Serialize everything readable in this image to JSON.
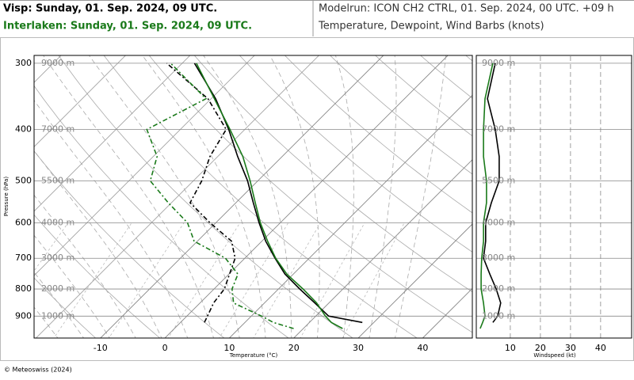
{
  "header": {
    "modelrun": "Modelrun: ICON CH2 CTRL, 01. Sep. 2024, 00 UTC. +09 h",
    "subtitle": "Temperature, Dewpoint, Wind Barbs (knots)"
  },
  "footer": "© Meteoswiss (2024)",
  "chart_data": [
    {
      "type": "skewt",
      "ylabel": "Pressure (hPa)",
      "xlabel": "Temperature (°C)",
      "xlim": [
        -20.3,
        47.7
      ],
      "xticks": [
        -10,
        0,
        10,
        20,
        30,
        40
      ],
      "ylim": [
        990,
        290
      ],
      "yticks": [
        300,
        400,
        500,
        600,
        700,
        800,
        900
      ],
      "log_y": true,
      "grid": true,
      "height_labels": [
        "9000 m",
        "7000 m",
        "5500 m",
        "4000 m",
        "3000 m",
        "2000 m",
        "1000 m"
      ],
      "series": [
        {
          "name": "Visp: Sunday, 01. Sep. 2024, 09 UTC.",
          "color": "#000000",
          "values": [
            925,
            900,
            850,
            800,
            750,
            700,
            650,
            600,
            550,
            500,
            450,
            400,
            350,
            300
          ],
          "x": [
            28.2,
            22.0,
            17.8,
            13.3,
            8.7,
            4.7,
            0.6,
            -3.3,
            -7.3,
            -11.6,
            -16.9,
            -22.5,
            -29.3,
            -38.1
          ],
          "dewpoint": [
            3.7,
            3.2,
            2.1,
            1.6,
            0.1,
            -1.5,
            -4.7,
            -10.9,
            -17.1,
            -18.7,
            -21.2,
            -22.9,
            -30.5,
            -42.4
          ]
        },
        {
          "name": "Interlaken: Sunday, 01. Sep. 2024, 09 UTC.",
          "color": "#1a7a1a",
          "values": [
            950,
            925,
            900,
            850,
            800,
            750,
            700,
            650,
            600,
            550,
            500,
            450,
            400,
            350,
            300
          ],
          "x": [
            26.1,
            23.4,
            21.5,
            18.1,
            13.8,
            9.0,
            4.8,
            0.9,
            -3.1,
            -7.0,
            -11.2,
            -16.1,
            -22.3,
            -29.5,
            -37.8
          ],
          "dewpoint": [
            18.5,
            14.4,
            11.6,
            5.2,
            2.8,
            1.4,
            -3.0,
            -10.5,
            -14.4,
            -20.5,
            -26.7,
            -29.4,
            -35.2,
            -30.8,
            -41.8
          ]
        }
      ]
    },
    {
      "type": "windprofile",
      "xlabel": "Windspeed (kt)",
      "xlim": [
        -1.3,
        50.3
      ],
      "xticks": [
        10,
        20,
        30,
        40
      ],
      "series": [
        {
          "color": "#000000",
          "values": [
            925,
            900,
            850,
            800,
            750,
            700,
            650,
            600,
            550,
            500,
            450,
            400,
            350,
            300
          ],
          "x": [
            4.2,
            5.8,
            6.8,
            5.3,
            3.2,
            1.1,
            1.8,
            1.8,
            3.7,
            6.3,
            6.3,
            5.0,
            2.4,
            5.0
          ]
        },
        {
          "color": "#1a7a1a",
          "values": [
            950,
            925,
            900,
            850,
            800,
            750,
            700,
            650,
            600,
            550,
            500,
            450,
            400,
            350,
            300
          ],
          "x": [
            0.0,
            0.8,
            1.6,
            1.1,
            0.3,
            0.3,
            0.5,
            1.1,
            1.1,
            2.1,
            2.1,
            1.1,
            1.1,
            1.6,
            4.2
          ]
        }
      ]
    }
  ]
}
